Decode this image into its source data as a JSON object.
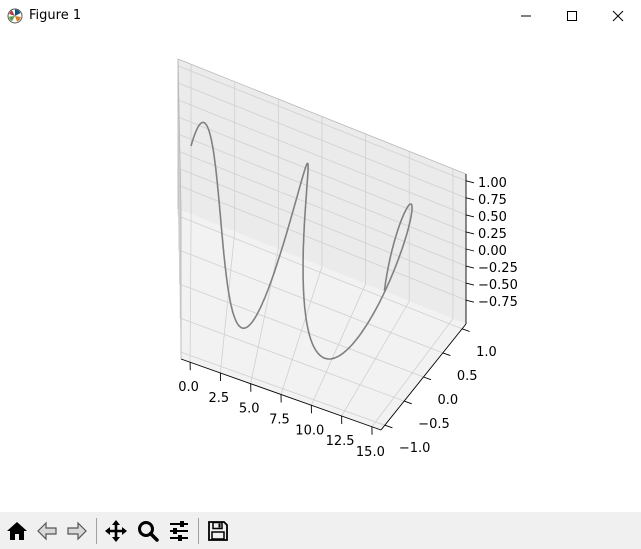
{
  "window": {
    "title": "Figure 1"
  },
  "toolbar": {
    "buttons": [
      {
        "name": "home-button",
        "icon": "home-icon"
      },
      {
        "name": "back-button",
        "icon": "back-arrow-icon"
      },
      {
        "name": "forward-button",
        "icon": "forward-arrow-icon"
      },
      {
        "name": "pan-button",
        "icon": "move-icon"
      },
      {
        "name": "zoom-button",
        "icon": "magnifier-icon"
      },
      {
        "name": "configure-subplots-button",
        "icon": "sliders-icon"
      },
      {
        "name": "save-button",
        "icon": "floppy-disk-icon"
      }
    ]
  },
  "chart_data": {
    "type": "line",
    "projection": "3d",
    "title": "",
    "series": [
      {
        "color": "#808080",
        "x_expr": "t",
        "y_expr": "cos(t)",
        "z_expr": "sin(t)",
        "t_range": [
          0,
          15
        ]
      }
    ],
    "x_ticks": [
      "0.0",
      "2.5",
      "5.0",
      "7.5",
      "10.0",
      "12.5",
      "15.0"
    ],
    "y_ticks": [
      "−1.0",
      "−0.5",
      "0.0",
      "0.5",
      "1.0"
    ],
    "z_ticks": [
      "−0.75",
      "−0.50",
      "−0.25",
      "0.00",
      "0.25",
      "0.50",
      "0.75",
      "1.00"
    ],
    "xlim": [
      -0.75,
      15.75
    ],
    "ylim": [
      -1.1,
      1.1
    ],
    "zlim": [
      -1.1,
      1.1
    ],
    "grid": true
  }
}
